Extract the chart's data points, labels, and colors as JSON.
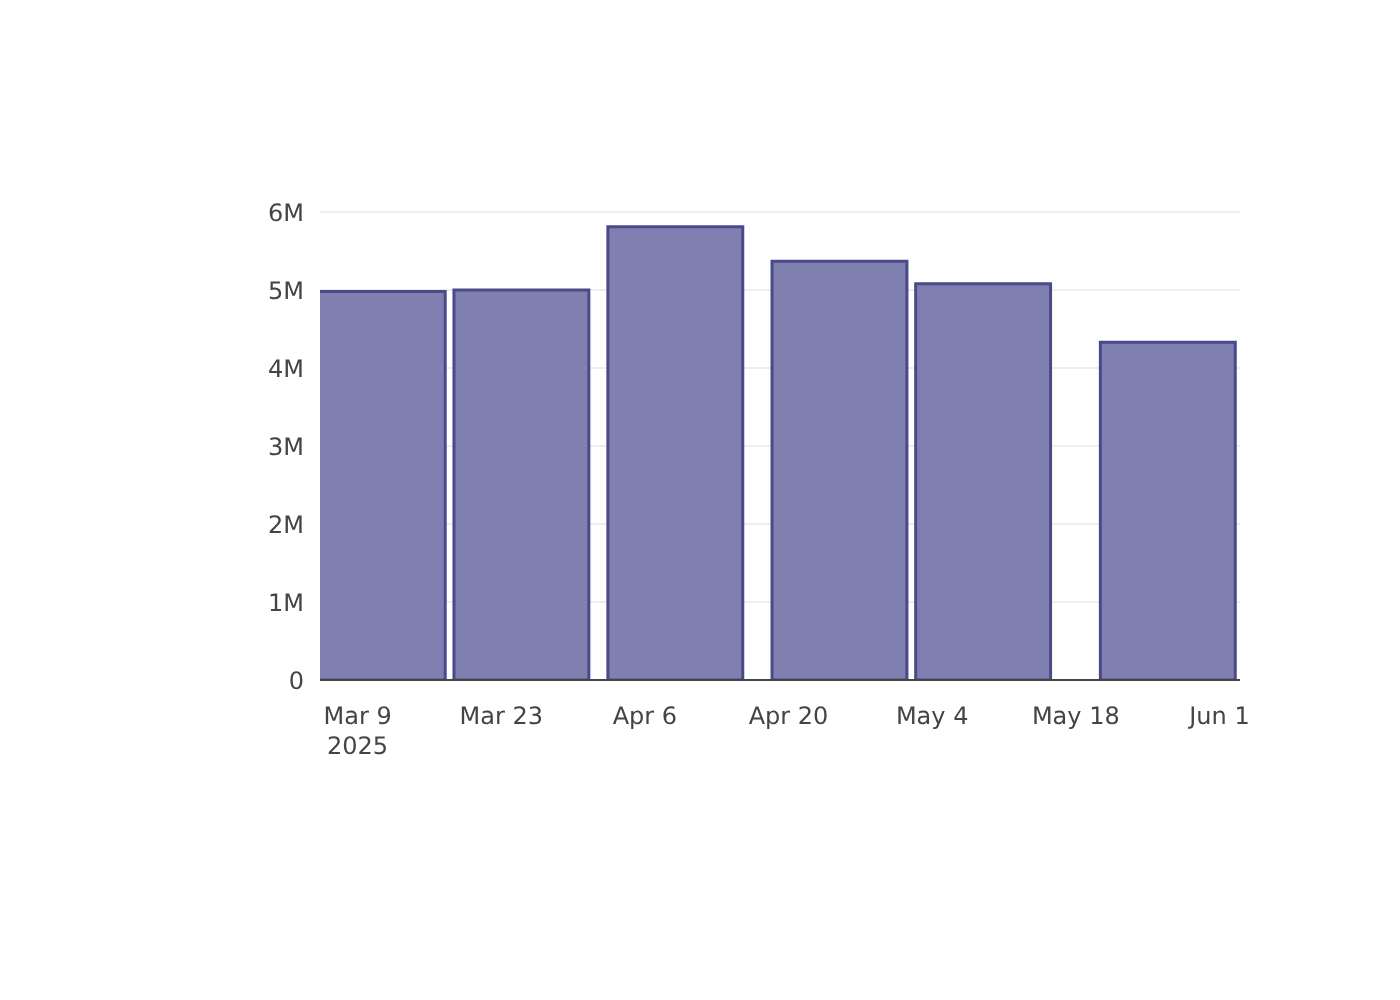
{
  "chart_data": {
    "type": "bar",
    "x": [
      "2025-03-11",
      "2025-03-25",
      "2025-04-09",
      "2025-04-25",
      "2025-05-09",
      "2025-05-27"
    ],
    "values": [
      4980000,
      5000000,
      5810000,
      5370000,
      5080000,
      4330000
    ],
    "color": "#7f7fb0",
    "xlim": [
      "2025-03-05T08:00",
      "2025-06-03"
    ],
    "xticks": [
      {
        "value": "2025-03-09",
        "label": "Mar 9\n2025"
      },
      {
        "value": "2025-03-23",
        "label": "Mar 23"
      },
      {
        "value": "2025-04-06",
        "label": "Apr 6"
      },
      {
        "value": "2025-04-20",
        "label": "Apr 20"
      },
      {
        "value": "2025-05-04",
        "label": "May 4"
      },
      {
        "value": "2025-05-18",
        "label": "May 18"
      },
      {
        "value": "2025-06-01",
        "label": "Jun 1"
      }
    ],
    "ylim": [
      0,
      6000000
    ],
    "yticks": [
      0,
      {
        "value": 1000000,
        "label": "1M"
      },
      {
        "value": 2000000,
        "label": "2M"
      },
      {
        "value": 3000000,
        "label": "3M"
      },
      {
        "value": 4000000,
        "label": "4M"
      },
      {
        "value": 5000000,
        "label": "5M"
      },
      {
        "value": 6000000,
        "label": "6M"
      }
    ],
    "grid": "y"
  }
}
